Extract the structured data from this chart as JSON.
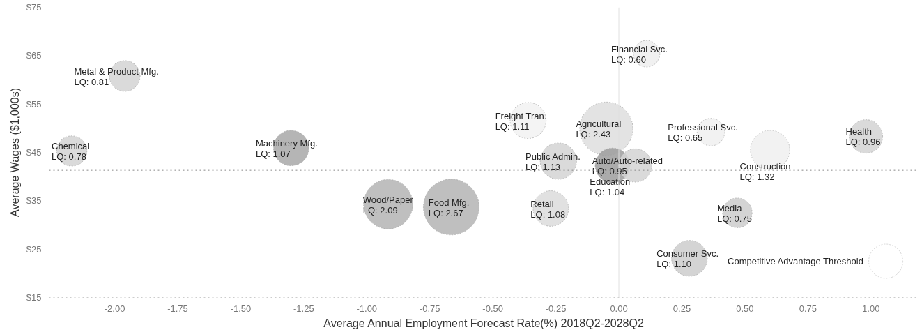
{
  "chart_data": {
    "type": "bubble",
    "xlabel": "Average Annual Employment Forecast Rate(%) 2018Q2-2028Q2",
    "ylabel": "Average Wages ($1,000s)",
    "x": [
      -1.96,
      -2.17,
      -1.3,
      -0.915,
      -0.665,
      0.11,
      -0.05,
      -0.36,
      -0.24,
      -0.025,
      0.065,
      -0.27,
      0.365,
      0.6,
      0.98,
      0.47,
      0.28
    ],
    "values": [
      60.8,
      45.3,
      45.9,
      34.3,
      33.7,
      65.4,
      49.9,
      51.6,
      43.2,
      42.3,
      42.3,
      33.4,
      49.2,
      45.5,
      48.3,
      32.5,
      23.1
    ],
    "sizes": [
      0.81,
      0.78,
      1.07,
      2.09,
      2.67,
      0.6,
      2.43,
      1.11,
      1.13,
      1.04,
      0.95,
      1.08,
      0.65,
      1.32,
      0.96,
      0.75,
      1.1
    ],
    "size_legend": [
      {
        "value": 1.0,
        "label": "Competitive Advantage Threshold"
      }
    ],
    "value_labels": [
      "Metal & Product Mfg.\nLQ: 0.81",
      "Chemical\nLQ: 0.78",
      "Machinery Mfg.\nLQ: 1.07",
      "Wood/Paper\nLQ: 2.09",
      "Food Mfg.\nLQ: 2.67",
      "Financial Svc.\nLQ: 0.60",
      "Agricultural\nLQ: 2.43",
      "Freight Tran.\nLQ: 1.11",
      "Public Admin.\nLQ: 1.13",
      "Education\nLQ: 1.04",
      "Auto/Auto-related\nLQ: 0.95",
      "Retail\nLQ: 1.08",
      "Professional Svc.\nLQ: 0.65",
      "Construction\nLQ: 1.32",
      "Health\nLQ: 0.96",
      "Media\nLQ: 0.75",
      "Consumer Svc.\nLQ: 1.10"
    ],
    "colors": [
      "#d4d4d4",
      "#d4d4d4",
      "#a8a8a8",
      "#b4b4b4",
      "#b4b4b4",
      "#eeeeee",
      "#dedede",
      "#f2f2f2",
      "#d4d4d4",
      "#9c9c9c",
      "#d4d4d4",
      "#dcdcdc",
      "#f0f0f0",
      "#f0f0f0",
      "#d4d4d4",
      "#cccccc",
      "#cccccc"
    ],
    "xlim": [
      -2.26,
      1.19
    ],
    "ylim": [
      15,
      75
    ],
    "xticks": [
      {
        "value": -2.0,
        "label": "-2.00"
      },
      {
        "value": -1.75,
        "label": "-1.75"
      },
      {
        "value": -1.5,
        "label": "-1.50"
      },
      {
        "value": -1.25,
        "label": "-1.25"
      },
      {
        "value": -1.0,
        "label": "-1.00"
      },
      {
        "value": -0.75,
        "label": "-0.75"
      },
      {
        "value": -0.5,
        "label": "-0.50"
      },
      {
        "value": -0.25,
        "label": "-0.25"
      },
      {
        "value": 0,
        "label": "0.00"
      },
      {
        "value": 0.25,
        "label": "0.25"
      },
      {
        "value": 0.5,
        "label": "0.50"
      },
      {
        "value": 0.75,
        "label": "0.75"
      },
      {
        "value": 1.0,
        "label": "1.00"
      }
    ],
    "yticks": [
      {
        "value": 15,
        "label": "$15"
      },
      {
        "value": 25,
        "label": "$25"
      },
      {
        "value": 35,
        "label": "$35"
      },
      {
        "value": 45,
        "label": "$45"
      },
      {
        "value": 55,
        "label": "$55"
      },
      {
        "value": 65,
        "label": "$65"
      },
      {
        "value": 75,
        "label": "$75"
      }
    ],
    "ref_lines": [
      {
        "axis": "y",
        "value": 41.3,
        "color": "#888888",
        "line_style": "dotted"
      },
      {
        "axis": "x",
        "value": 0,
        "color": "#e0e0e0",
        "line_style": "solid"
      }
    ],
    "grid": false
  }
}
